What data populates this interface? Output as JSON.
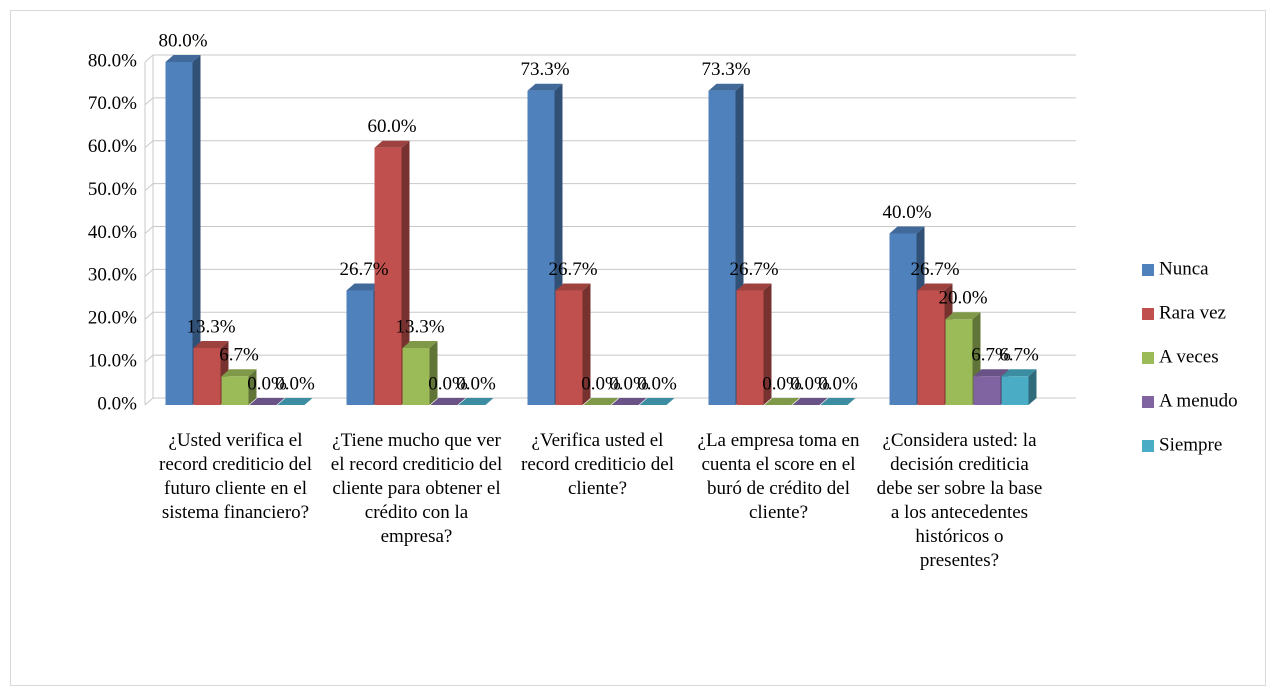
{
  "chart_data": {
    "type": "bar3d",
    "categories": [
      "¿Usted verifica el record crediticio del futuro cliente en el sistema financiero?",
      "¿Tiene mucho que ver el record crediticio del cliente para obtener el crédito con la empresa?",
      "¿Verifica usted el record crediticio del cliente?",
      "¿La empresa toma en cuenta el score en el buró de crédito del cliente?",
      "¿Considera usted: la decisión crediticia debe ser sobre la base a los antecedentes históricos o presentes?"
    ],
    "series": [
      {
        "name": "Nunca",
        "color": "#4f81bd",
        "values": [
          80,
          26.7,
          73.3,
          73.3,
          40
        ],
        "value_labels": [
          "80.0%",
          "26.7%",
          "73.3%",
          "73.3%",
          "40.0%"
        ]
      },
      {
        "name": "Rara vez",
        "color": "#c0504d",
        "values": [
          13.3,
          60,
          26.7,
          26.7,
          26.7
        ],
        "value_labels": [
          "13.3%",
          "60.0%",
          "26.7%",
          "26.7%",
          "26.7%"
        ]
      },
      {
        "name": "A veces",
        "color": "#9bbb59",
        "values": [
          6.7,
          13.3,
          0,
          0,
          20
        ],
        "value_labels": [
          "6.7%",
          "13.3%",
          "0.0%",
          "0.0%",
          "20.0%"
        ]
      },
      {
        "name": "A menudo",
        "color": "#8064a2",
        "values": [
          0,
          0,
          0,
          0,
          6.7
        ],
        "value_labels": [
          "0.0%",
          "0.0%",
          "0.0%",
          "0.0%",
          "6.7%"
        ]
      },
      {
        "name": "Siempre",
        "color": "#4bacc6",
        "values": [
          0,
          0,
          0,
          0,
          6.7
        ],
        "value_labels": [
          "0.0%",
          "0.0%",
          "0.0%",
          "0.0%",
          "6.7%"
        ]
      }
    ],
    "ylim": [
      0,
      80
    ],
    "yticks": [
      {
        "value": 0,
        "label": "0.0%"
      },
      {
        "value": 10,
        "label": "10.0%"
      },
      {
        "value": 20,
        "label": "20.0%"
      },
      {
        "value": 30,
        "label": "30.0%"
      },
      {
        "value": 40,
        "label": "40.0%"
      },
      {
        "value": 50,
        "label": "50.0%"
      },
      {
        "value": 60,
        "label": "60.0%"
      },
      {
        "value": 70,
        "label": "70.0%"
      },
      {
        "value": 80,
        "label": "80.0%"
      }
    ],
    "grid": true,
    "legend": "right"
  }
}
